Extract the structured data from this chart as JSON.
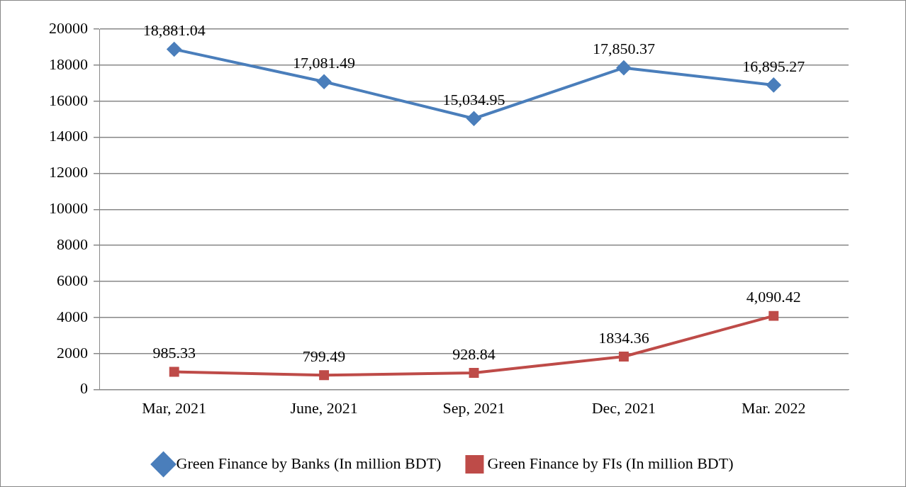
{
  "chart_data": {
    "type": "line",
    "categories": [
      "Mar, 2021",
      "June, 2021",
      "Sep, 2021",
      "Dec, 2021",
      "Mar. 2022"
    ],
    "series": [
      {
        "name": "Green Finance by Banks (In million BDT)",
        "color": "#4a7ebb",
        "marker": "diamond",
        "values": [
          18881.04,
          17081.49,
          15034.95,
          17850.37,
          16895.27
        ],
        "value_labels": [
          "18,881.04",
          "17,081.49",
          "15,034.95",
          "17,850.37",
          "16,895.27"
        ]
      },
      {
        "name": "Green Finance by FIs (In million BDT)",
        "color": "#be4b48",
        "marker": "square",
        "values": [
          985.33,
          799.49,
          928.84,
          1834.36,
          4090.42
        ],
        "value_labels": [
          "985.33",
          "799.49",
          "928.84",
          "1834.36",
          "4,090.42"
        ]
      }
    ],
    "ylim": [
      0,
      20000
    ],
    "yticks": [
      0,
      2000,
      4000,
      6000,
      8000,
      10000,
      12000,
      14000,
      16000,
      18000,
      20000
    ],
    "grid": "y",
    "legend": "bottom"
  }
}
